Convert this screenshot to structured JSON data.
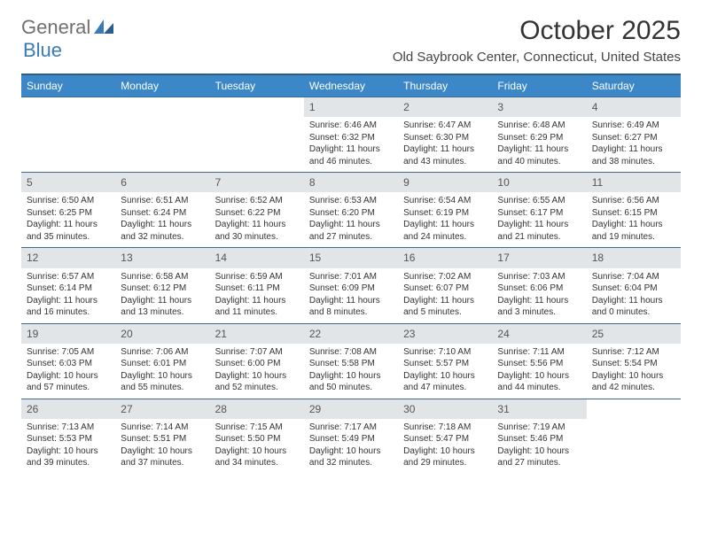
{
  "logo": {
    "general": "General",
    "blue": "Blue"
  },
  "title": "October 2025",
  "location": "Old Saybrook Center, Connecticut, United States",
  "colors": {
    "header_bg": "#3b87c8",
    "header_border": "#2e5d86",
    "row_border": "#3b6a94",
    "daynum_bg": "#e1e5e8",
    "text": "#333333"
  },
  "day_names": [
    "Sunday",
    "Monday",
    "Tuesday",
    "Wednesday",
    "Thursday",
    "Friday",
    "Saturday"
  ],
  "weeks": [
    [
      {
        "n": "",
        "sr": "",
        "ss": "",
        "dl1": "",
        "dl2": ""
      },
      {
        "n": "",
        "sr": "",
        "ss": "",
        "dl1": "",
        "dl2": ""
      },
      {
        "n": "",
        "sr": "",
        "ss": "",
        "dl1": "",
        "dl2": ""
      },
      {
        "n": "1",
        "sr": "Sunrise: 6:46 AM",
        "ss": "Sunset: 6:32 PM",
        "dl1": "Daylight: 11 hours",
        "dl2": "and 46 minutes."
      },
      {
        "n": "2",
        "sr": "Sunrise: 6:47 AM",
        "ss": "Sunset: 6:30 PM",
        "dl1": "Daylight: 11 hours",
        "dl2": "and 43 minutes."
      },
      {
        "n": "3",
        "sr": "Sunrise: 6:48 AM",
        "ss": "Sunset: 6:29 PM",
        "dl1": "Daylight: 11 hours",
        "dl2": "and 40 minutes."
      },
      {
        "n": "4",
        "sr": "Sunrise: 6:49 AM",
        "ss": "Sunset: 6:27 PM",
        "dl1": "Daylight: 11 hours",
        "dl2": "and 38 minutes."
      }
    ],
    [
      {
        "n": "5",
        "sr": "Sunrise: 6:50 AM",
        "ss": "Sunset: 6:25 PM",
        "dl1": "Daylight: 11 hours",
        "dl2": "and 35 minutes."
      },
      {
        "n": "6",
        "sr": "Sunrise: 6:51 AM",
        "ss": "Sunset: 6:24 PM",
        "dl1": "Daylight: 11 hours",
        "dl2": "and 32 minutes."
      },
      {
        "n": "7",
        "sr": "Sunrise: 6:52 AM",
        "ss": "Sunset: 6:22 PM",
        "dl1": "Daylight: 11 hours",
        "dl2": "and 30 minutes."
      },
      {
        "n": "8",
        "sr": "Sunrise: 6:53 AM",
        "ss": "Sunset: 6:20 PM",
        "dl1": "Daylight: 11 hours",
        "dl2": "and 27 minutes."
      },
      {
        "n": "9",
        "sr": "Sunrise: 6:54 AM",
        "ss": "Sunset: 6:19 PM",
        "dl1": "Daylight: 11 hours",
        "dl2": "and 24 minutes."
      },
      {
        "n": "10",
        "sr": "Sunrise: 6:55 AM",
        "ss": "Sunset: 6:17 PM",
        "dl1": "Daylight: 11 hours",
        "dl2": "and 21 minutes."
      },
      {
        "n": "11",
        "sr": "Sunrise: 6:56 AM",
        "ss": "Sunset: 6:15 PM",
        "dl1": "Daylight: 11 hours",
        "dl2": "and 19 minutes."
      }
    ],
    [
      {
        "n": "12",
        "sr": "Sunrise: 6:57 AM",
        "ss": "Sunset: 6:14 PM",
        "dl1": "Daylight: 11 hours",
        "dl2": "and 16 minutes."
      },
      {
        "n": "13",
        "sr": "Sunrise: 6:58 AM",
        "ss": "Sunset: 6:12 PM",
        "dl1": "Daylight: 11 hours",
        "dl2": "and 13 minutes."
      },
      {
        "n": "14",
        "sr": "Sunrise: 6:59 AM",
        "ss": "Sunset: 6:11 PM",
        "dl1": "Daylight: 11 hours",
        "dl2": "and 11 minutes."
      },
      {
        "n": "15",
        "sr": "Sunrise: 7:01 AM",
        "ss": "Sunset: 6:09 PM",
        "dl1": "Daylight: 11 hours",
        "dl2": "and 8 minutes."
      },
      {
        "n": "16",
        "sr": "Sunrise: 7:02 AM",
        "ss": "Sunset: 6:07 PM",
        "dl1": "Daylight: 11 hours",
        "dl2": "and 5 minutes."
      },
      {
        "n": "17",
        "sr": "Sunrise: 7:03 AM",
        "ss": "Sunset: 6:06 PM",
        "dl1": "Daylight: 11 hours",
        "dl2": "and 3 minutes."
      },
      {
        "n": "18",
        "sr": "Sunrise: 7:04 AM",
        "ss": "Sunset: 6:04 PM",
        "dl1": "Daylight: 11 hours",
        "dl2": "and 0 minutes."
      }
    ],
    [
      {
        "n": "19",
        "sr": "Sunrise: 7:05 AM",
        "ss": "Sunset: 6:03 PM",
        "dl1": "Daylight: 10 hours",
        "dl2": "and 57 minutes."
      },
      {
        "n": "20",
        "sr": "Sunrise: 7:06 AM",
        "ss": "Sunset: 6:01 PM",
        "dl1": "Daylight: 10 hours",
        "dl2": "and 55 minutes."
      },
      {
        "n": "21",
        "sr": "Sunrise: 7:07 AM",
        "ss": "Sunset: 6:00 PM",
        "dl1": "Daylight: 10 hours",
        "dl2": "and 52 minutes."
      },
      {
        "n": "22",
        "sr": "Sunrise: 7:08 AM",
        "ss": "Sunset: 5:58 PM",
        "dl1": "Daylight: 10 hours",
        "dl2": "and 50 minutes."
      },
      {
        "n": "23",
        "sr": "Sunrise: 7:10 AM",
        "ss": "Sunset: 5:57 PM",
        "dl1": "Daylight: 10 hours",
        "dl2": "and 47 minutes."
      },
      {
        "n": "24",
        "sr": "Sunrise: 7:11 AM",
        "ss": "Sunset: 5:56 PM",
        "dl1": "Daylight: 10 hours",
        "dl2": "and 44 minutes."
      },
      {
        "n": "25",
        "sr": "Sunrise: 7:12 AM",
        "ss": "Sunset: 5:54 PM",
        "dl1": "Daylight: 10 hours",
        "dl2": "and 42 minutes."
      }
    ],
    [
      {
        "n": "26",
        "sr": "Sunrise: 7:13 AM",
        "ss": "Sunset: 5:53 PM",
        "dl1": "Daylight: 10 hours",
        "dl2": "and 39 minutes."
      },
      {
        "n": "27",
        "sr": "Sunrise: 7:14 AM",
        "ss": "Sunset: 5:51 PM",
        "dl1": "Daylight: 10 hours",
        "dl2": "and 37 minutes."
      },
      {
        "n": "28",
        "sr": "Sunrise: 7:15 AM",
        "ss": "Sunset: 5:50 PM",
        "dl1": "Daylight: 10 hours",
        "dl2": "and 34 minutes."
      },
      {
        "n": "29",
        "sr": "Sunrise: 7:17 AM",
        "ss": "Sunset: 5:49 PM",
        "dl1": "Daylight: 10 hours",
        "dl2": "and 32 minutes."
      },
      {
        "n": "30",
        "sr": "Sunrise: 7:18 AM",
        "ss": "Sunset: 5:47 PM",
        "dl1": "Daylight: 10 hours",
        "dl2": "and 29 minutes."
      },
      {
        "n": "31",
        "sr": "Sunrise: 7:19 AM",
        "ss": "Sunset: 5:46 PM",
        "dl1": "Daylight: 10 hours",
        "dl2": "and 27 minutes."
      },
      {
        "n": "",
        "sr": "",
        "ss": "",
        "dl1": "",
        "dl2": ""
      }
    ]
  ]
}
